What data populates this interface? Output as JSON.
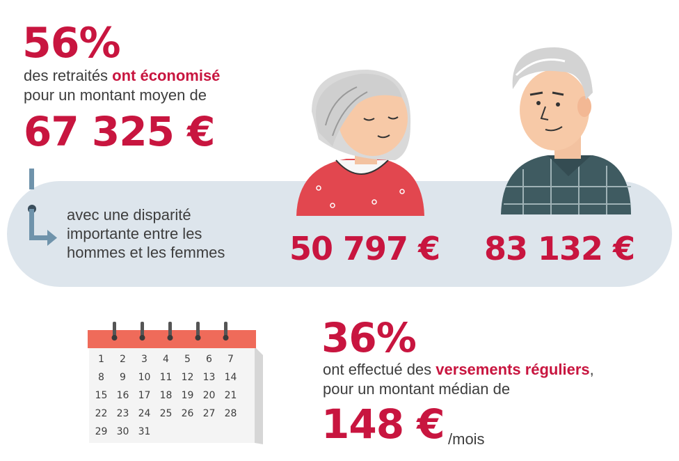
{
  "stat1": {
    "percent": "56%",
    "line1_before": "des retraités ",
    "line1_highlight": "ont économisé",
    "line2": "pour un montant moyen de",
    "amount": "67 325 €"
  },
  "disparity": {
    "lines": [
      "avec une disparité",
      "importante entre les",
      "hommes et les femmes"
    ],
    "women_amount": "50 797 €",
    "men_amount": "83 132 €"
  },
  "calendar": {
    "days": [
      "1",
      "2",
      "3",
      "4",
      "5",
      "6",
      "7",
      "8",
      "9",
      "10",
      "11",
      "12",
      "13",
      "14",
      "15",
      "16",
      "17",
      "18",
      "19",
      "20",
      "21",
      "22",
      "23",
      "24",
      "25",
      "26",
      "27",
      "28",
      "29",
      "30",
      "31"
    ]
  },
  "stat2": {
    "percent": "36%",
    "line1_before": "ont effectué des ",
    "line1_highlight": "versements réguliers",
    "line1_after": ",",
    "line2": "pour un montant médian de",
    "amount": "148 €",
    "unit": "/mois"
  },
  "colors": {
    "accent": "#c8153f",
    "band": "#dde5ec",
    "arrow": "#6f93ab",
    "calendar_header": "#ef6b5a"
  }
}
